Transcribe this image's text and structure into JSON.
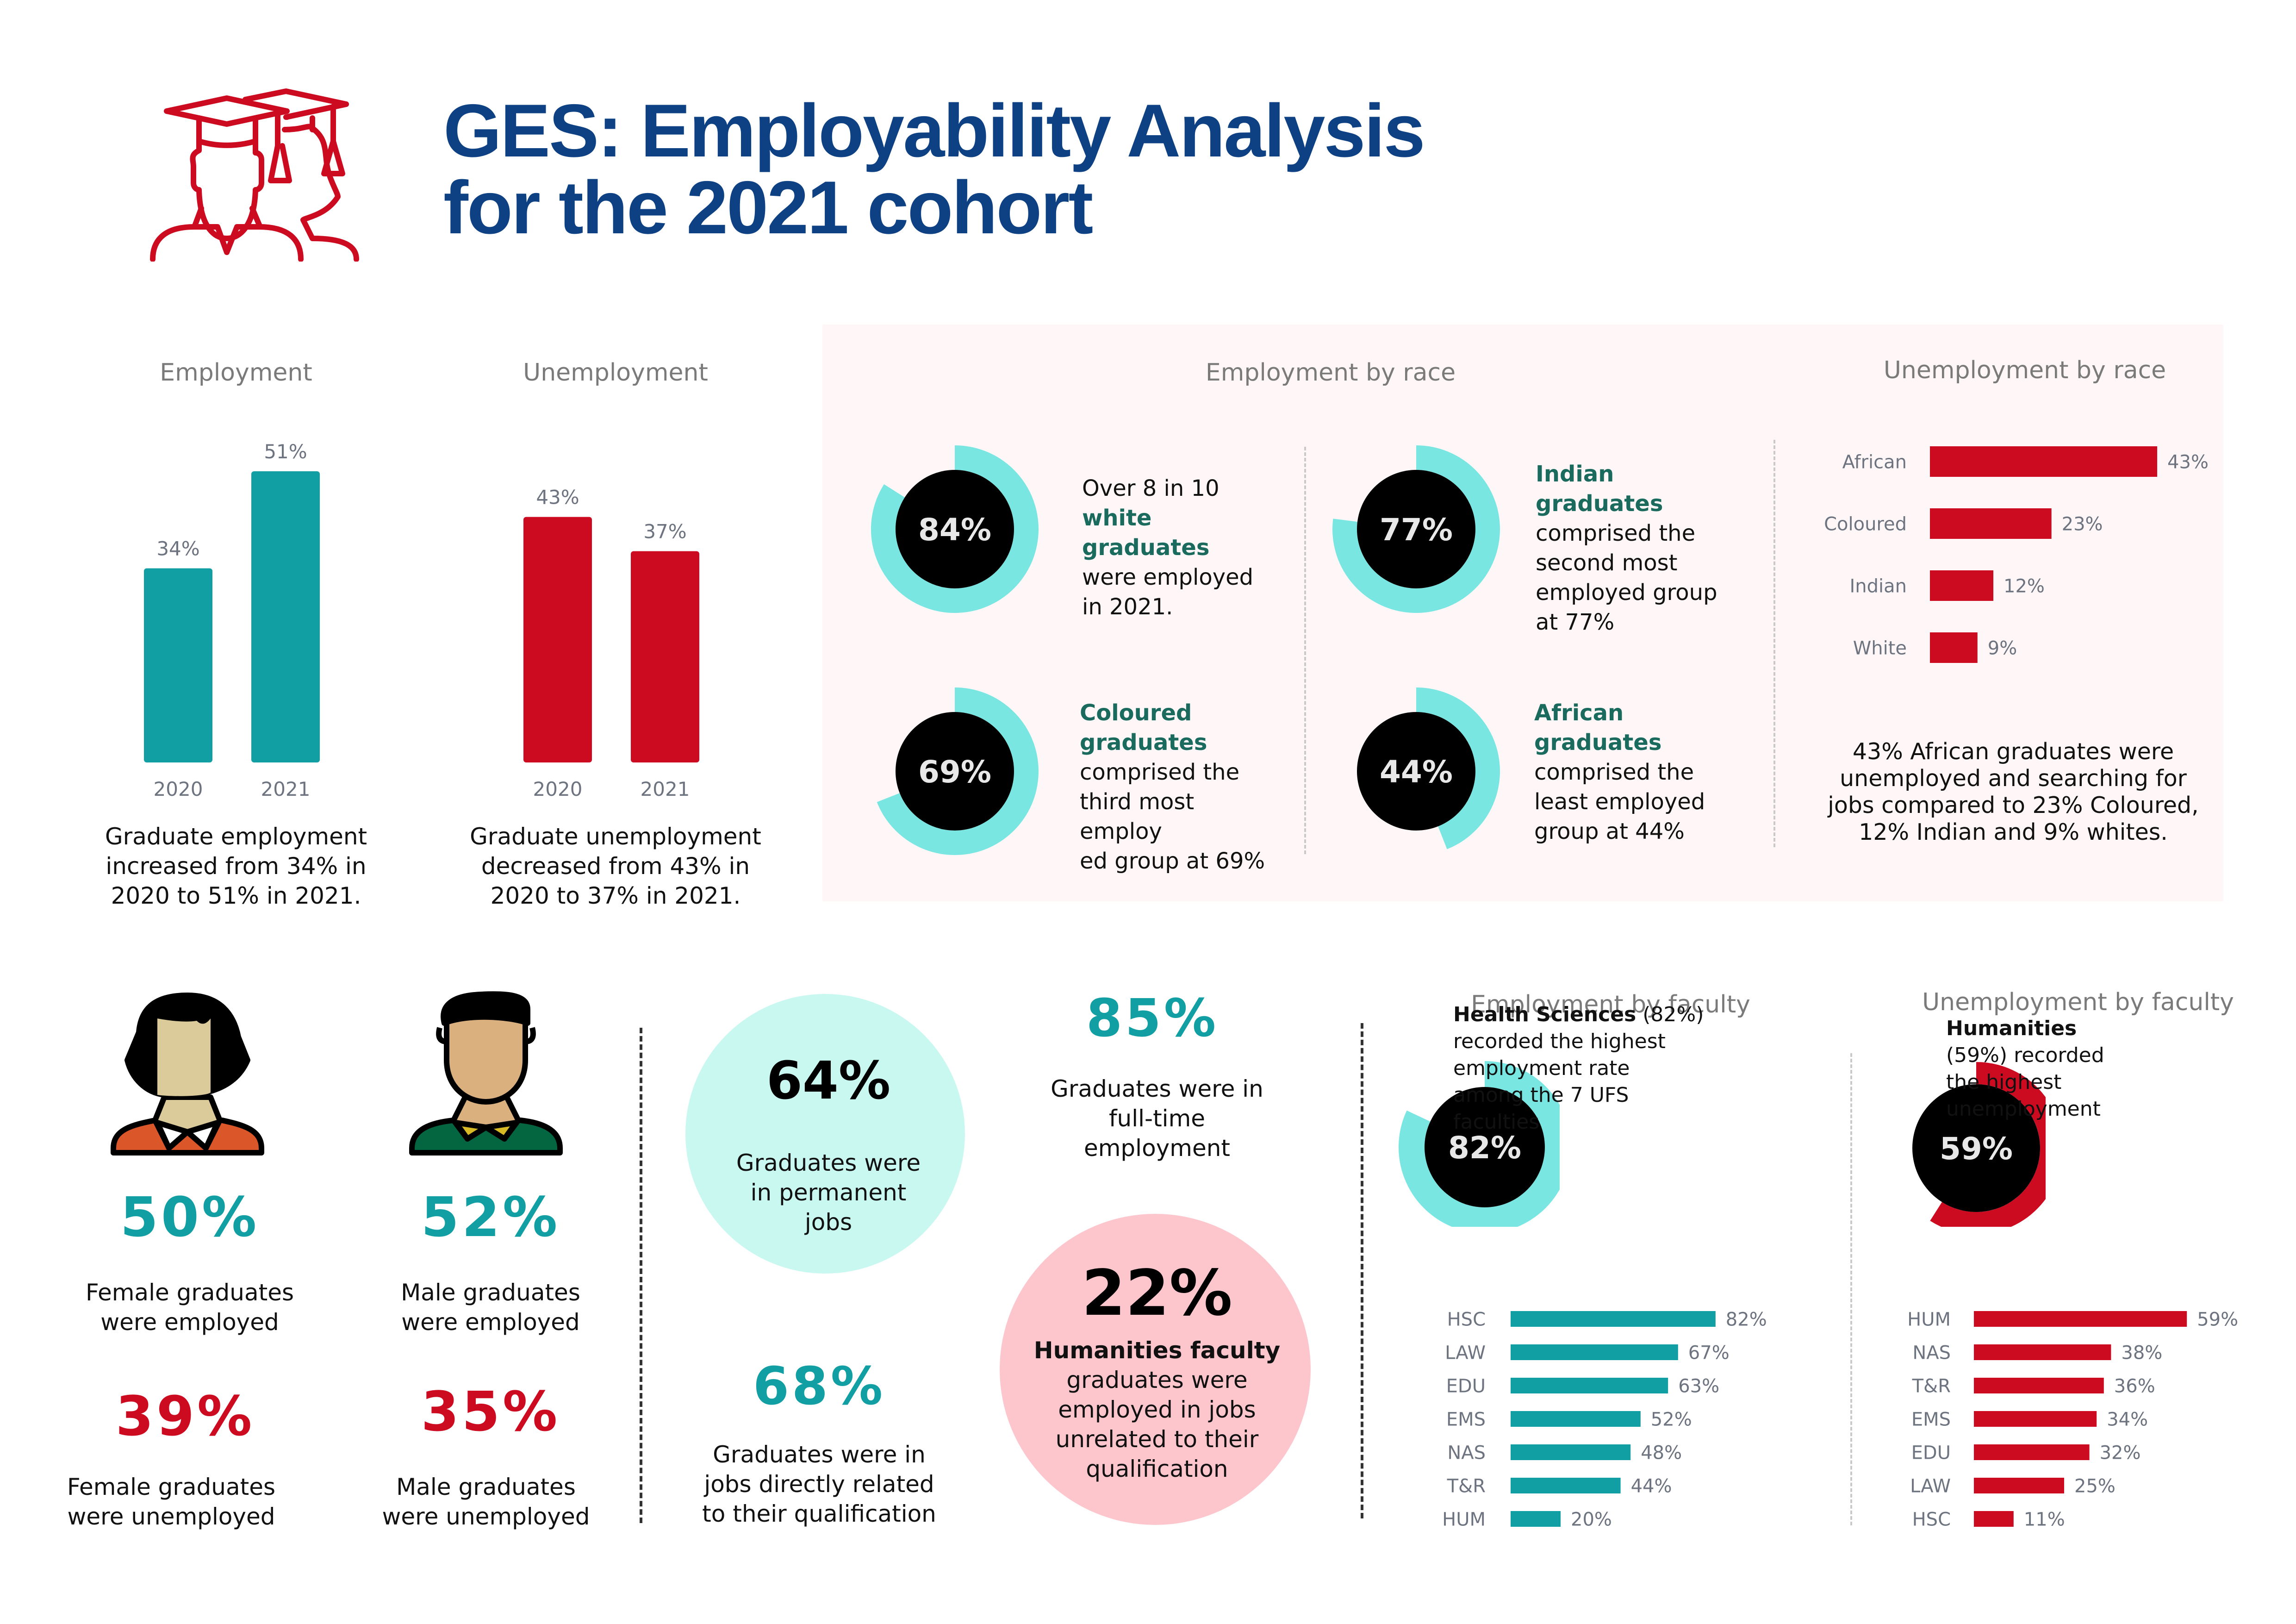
{
  "header": {
    "title_line1": "GES: Employability Analysis",
    "title_line2": "for the 2021 cohort",
    "icon": "graduates-icon"
  },
  "colors": {
    "title_blue": "#0d4184",
    "teal": "#129fa3",
    "light_teal": "#7ae6e2",
    "red": "#cc0a20",
    "panel_bg": "#fff7f7",
    "mint_circle": "#c9f8f1",
    "pink_circle": "#fdc6cc"
  },
  "employment": {
    "title": "Employment",
    "caption": [
      "Graduate employment",
      "increased from 34% in",
      "2020 to 51% in 2021."
    ]
  },
  "unemployment": {
    "title": "Unemployment",
    "caption": [
      "Graduate unemployment",
      "decreased from 43% in",
      "2020 to 37% in 2021."
    ]
  },
  "employment_by_race": {
    "title": "Employment by race",
    "items": [
      {
        "value": 84,
        "label": "84%",
        "highlight": "white graduates",
        "pre": "Over 8 in 10",
        "lines": [
          "were employed",
          "in 2021."
        ]
      },
      {
        "value": 77,
        "label": "77%",
        "highlight": "Indian graduates",
        "pre": "",
        "lines": [
          "comprised the",
          "second most",
          "employed group",
          "at 77%"
        ]
      },
      {
        "value": 69,
        "label": "69%",
        "highlight": "Coloured graduates",
        "highlight_lines": [
          "Coloured",
          "graduates"
        ],
        "pre": "",
        "lines": [
          "comprised the",
          "third most employ",
          "ed group at 69%"
        ]
      },
      {
        "value": 44,
        "label": "44%",
        "highlight": "African graduates",
        "highlight_lines": [
          "African",
          "graduates"
        ],
        "pre": "",
        "lines": [
          "comprised the",
          "least employed",
          "group at 44%"
        ]
      }
    ]
  },
  "unemployment_by_race": {
    "title": "Unemployment by race",
    "caption": [
      "43% African graduates were",
      "unemployed and searching for",
      "jobs compared to 23% Coloured,",
      "12% Indian and 9% whites."
    ]
  },
  "gender": {
    "female_employed": {
      "value": "50%",
      "lines": [
        "Female graduates",
        "were employed"
      ]
    },
    "male_employed": {
      "value": "52%",
      "lines": [
        "Male graduates",
        "were employed"
      ]
    },
    "female_unemployed": {
      "value": "39%",
      "lines": [
        "Female graduates",
        "were unemployed"
      ]
    },
    "male_unemployed": {
      "value": "35%",
      "lines": [
        "Male graduates",
        "were unemployed"
      ]
    }
  },
  "job_stats": {
    "permanent": {
      "value": "64%",
      "lines": [
        "Graduates were",
        "in permanent",
        "jobs"
      ]
    },
    "fulltime": {
      "value": "85%",
      "lines": [
        "Graduates were in",
        "full-time",
        "employment"
      ]
    },
    "related": {
      "value": "68%",
      "lines": [
        "Graduates were in",
        "jobs directly related",
        "to their qualification"
      ]
    },
    "humanities_unrelated": {
      "value": "22%",
      "bold": "Humanities faculty",
      "lines": [
        "graduates were",
        "employed in jobs",
        "unrelated to their",
        "qualification"
      ]
    }
  },
  "employment_by_faculty": {
    "title": "Employment by faculty",
    "highlight_value": 82,
    "highlight_label": "82%",
    "bold": "Health Sciences",
    "text_first_rest": " (82%)",
    "lines": [
      "recorded the highest",
      "employment rate",
      "among the 7 UFS",
      "faculties"
    ]
  },
  "unemployment_by_faculty": {
    "title": "Unemployment by faculty",
    "highlight_value": 59,
    "highlight_label": "59%",
    "bold": "Humanities",
    "lines": [
      "(59%) recorded",
      "the highest",
      "unemployment"
    ]
  },
  "chart_data": [
    {
      "type": "bar",
      "title": "Employment",
      "categories": [
        "2020",
        "2021"
      ],
      "values": [
        34,
        51
      ],
      "labels": [
        "34%",
        "51%"
      ],
      "xlabel": "",
      "ylabel": "",
      "ylim": [
        0,
        51
      ],
      "grid": false
    },
    {
      "type": "bar",
      "title": "Unemployment",
      "categories": [
        "2020",
        "2021"
      ],
      "values": [
        43,
        37
      ],
      "labels": [
        "43%",
        "37%"
      ],
      "xlabel": "",
      "ylabel": "",
      "ylim": [
        0,
        43
      ],
      "grid": false
    },
    {
      "type": "pie",
      "title": "Employment by race",
      "categories": [
        "White",
        "Indian",
        "Coloured",
        "African"
      ],
      "values": [
        84,
        77,
        69,
        44
      ]
    },
    {
      "type": "bar",
      "orientation": "horizontal",
      "title": "Unemployment by race",
      "categories": [
        "African",
        "Coloured",
        "Indian",
        "White"
      ],
      "values": [
        43,
        23,
        12,
        9
      ],
      "labels": [
        "43%",
        "23%",
        "12%",
        "9%"
      ],
      "grid": false
    },
    {
      "type": "bar",
      "orientation": "horizontal",
      "title": "Employment by faculty",
      "categories": [
        "HSC",
        "LAW",
        "EDU",
        "EMS",
        "NAS",
        "T&R",
        "HUM"
      ],
      "values": [
        82,
        67,
        63,
        52,
        48,
        44,
        20
      ],
      "labels": [
        "82%",
        "67%",
        "63%",
        "52%",
        "48%",
        "44%",
        "20%"
      ],
      "grid": false
    },
    {
      "type": "bar",
      "orientation": "horizontal",
      "title": "Unemployment by faculty",
      "categories": [
        "HUM",
        "NAS",
        "T&R",
        "EMS",
        "EDU",
        "LAW",
        "HSC"
      ],
      "values": [
        59,
        38,
        36,
        34,
        32,
        25,
        11
      ],
      "labels": [
        "59%",
        "38%",
        "36%",
        "34%",
        "32%",
        "25%",
        "11%"
      ],
      "grid": false
    }
  ]
}
